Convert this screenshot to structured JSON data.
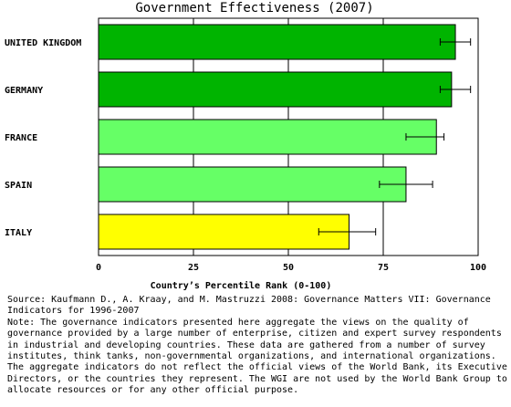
{
  "chart_data": {
    "type": "bar",
    "orientation": "horizontal",
    "title": "Government Effectiveness (2007)",
    "xlabel": "Country’s Percentile Rank (0-100)",
    "ylabel": "",
    "xlim": [
      0,
      100
    ],
    "ticks": [
      "0",
      "25",
      "50",
      "75",
      "100"
    ],
    "grid": true,
    "error_bars": true,
    "categories": [
      "UNITED KINGDOM",
      "GERMANY",
      "FRANCE",
      "SPAIN",
      "ITALY"
    ],
    "values": [
      94,
      93,
      89,
      81,
      66
    ],
    "error_low": [
      90,
      90,
      81,
      74,
      58
    ],
    "error_high": [
      98,
      98,
      91,
      88,
      73
    ],
    "colors": [
      "#00b400",
      "#00b400",
      "#66ff66",
      "#66ff66",
      "#ffff00"
    ]
  },
  "notes": {
    "source": "Source: Kaufmann D., A. Kraay, and M. Mastruzzi 2008: Governance Matters VII: Governance Indicators for 1996-2007",
    "note": "Note: The governance indicators presented here aggregate the views on the quality of governance provided by a large number of enterprise, citizen and expert survey respondents in industrial and developing countries. These data are gathered from a number of survey institutes, think tanks, non-governmental organizations, and international organizations. The aggregate indicators do not reflect the official views of the World Bank, its Executive Directors, or the countries they represent. The WGI are not used by the World Bank Group to allocate resources or for any other official purpose."
  }
}
